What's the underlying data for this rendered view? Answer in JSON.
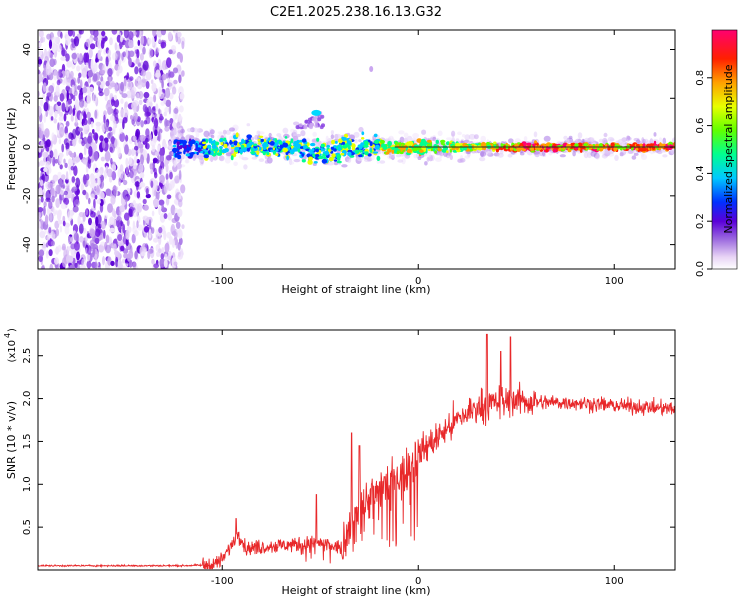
{
  "title": "C2E1.2025.238.16.13.G32",
  "chart_data": [
    {
      "type": "heatmap",
      "name": "spectrogram",
      "xlabel": "Height of straight line (km)",
      "ylabel": "Frequency (Hz)",
      "xlim": [
        -194,
        131
      ],
      "ylim": [
        -50,
        48
      ],
      "xticks": [
        -100,
        0,
        100
      ],
      "xtick_labels": [
        "-100",
        "0",
        "100"
      ],
      "yticks": [
        -40,
        -20,
        0,
        20,
        40
      ],
      "ytick_labels": [
        "-40",
        "-20",
        "0",
        "20",
        "40"
      ],
      "ridge_frequency": 0,
      "noise_region_x": [
        -194,
        -120
      ],
      "colorbar": {
        "label": "Normalized spectral amplitude",
        "range": [
          0,
          1
        ],
        "ticks": [
          0.0,
          0.2,
          0.4,
          0.6,
          0.8
        ],
        "tick_labels": [
          "0.0",
          "0.2",
          "0.4",
          "0.6",
          "0.8"
        ]
      }
    },
    {
      "type": "line",
      "name": "snr",
      "xlabel": "Height of straight line (km)",
      "ylabel": "SNR (10 * v/v)",
      "scale_label": "(x10",
      "scale_exponent": "4",
      "xlim": [
        -194,
        131
      ],
      "ylim": [
        0,
        2.8
      ],
      "xticks": [
        -100,
        0,
        100
      ],
      "xtick_labels": [
        "-100",
        "0",
        "100"
      ],
      "yticks": [
        0.5,
        1.0,
        1.5,
        2.0,
        2.5
      ],
      "ytick_labels": [
        "0.5",
        "1.0",
        "1.5",
        "2.0",
        "2.5"
      ],
      "color": "#e8282a",
      "envelope": {
        "x": [
          -194,
          -120,
          -105,
          -100,
          -95,
          -92,
          -88,
          -75,
          -60,
          -50,
          -45,
          -40,
          -35,
          -30,
          -25,
          -20,
          -10,
          0,
          10,
          20,
          30,
          40,
          50,
          60,
          80,
          100,
          131
        ],
        "y": [
          0.05,
          0.05,
          0.06,
          0.12,
          0.3,
          0.45,
          0.25,
          0.28,
          0.3,
          0.32,
          0.28,
          0.26,
          0.45,
          0.75,
          0.85,
          0.95,
          1.1,
          1.35,
          1.55,
          1.75,
          1.9,
          1.95,
          1.98,
          1.96,
          1.95,
          1.92,
          1.88
        ]
      },
      "peaks": [
        {
          "x": -93,
          "y": 0.6
        },
        {
          "x": -52,
          "y": 0.88
        },
        {
          "x": -34,
          "y": 1.6
        },
        {
          "x": -30,
          "y": 1.45
        },
        {
          "x": 35,
          "y": 2.75
        },
        {
          "x": 47,
          "y": 2.72
        },
        {
          "x": 42,
          "y": 2.55
        }
      ]
    }
  ]
}
